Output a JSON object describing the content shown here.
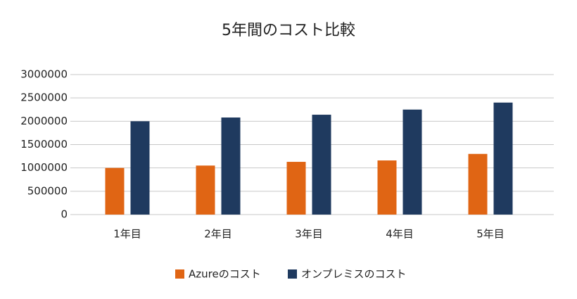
{
  "chart_data": {
    "type": "bar",
    "title": "5年間のコスト比較",
    "categories": [
      "1年目",
      "2年目",
      "3年目",
      "4年目",
      "5年目"
    ],
    "series": [
      {
        "name": "Azureのコスト",
        "color": "#e06514",
        "values": [
          1000000,
          1050000,
          1130000,
          1160000,
          1300000
        ]
      },
      {
        "name": "オンプレミスのコスト",
        "color": "#1f3a5f",
        "values": [
          2000000,
          2080000,
          2140000,
          2250000,
          2400000
        ]
      }
    ],
    "ylim": [
      0,
      3000000
    ],
    "yticks": [
      0,
      500000,
      1000000,
      1500000,
      2000000,
      2500000,
      3000000
    ],
    "grid": true,
    "legend": "bottom"
  }
}
